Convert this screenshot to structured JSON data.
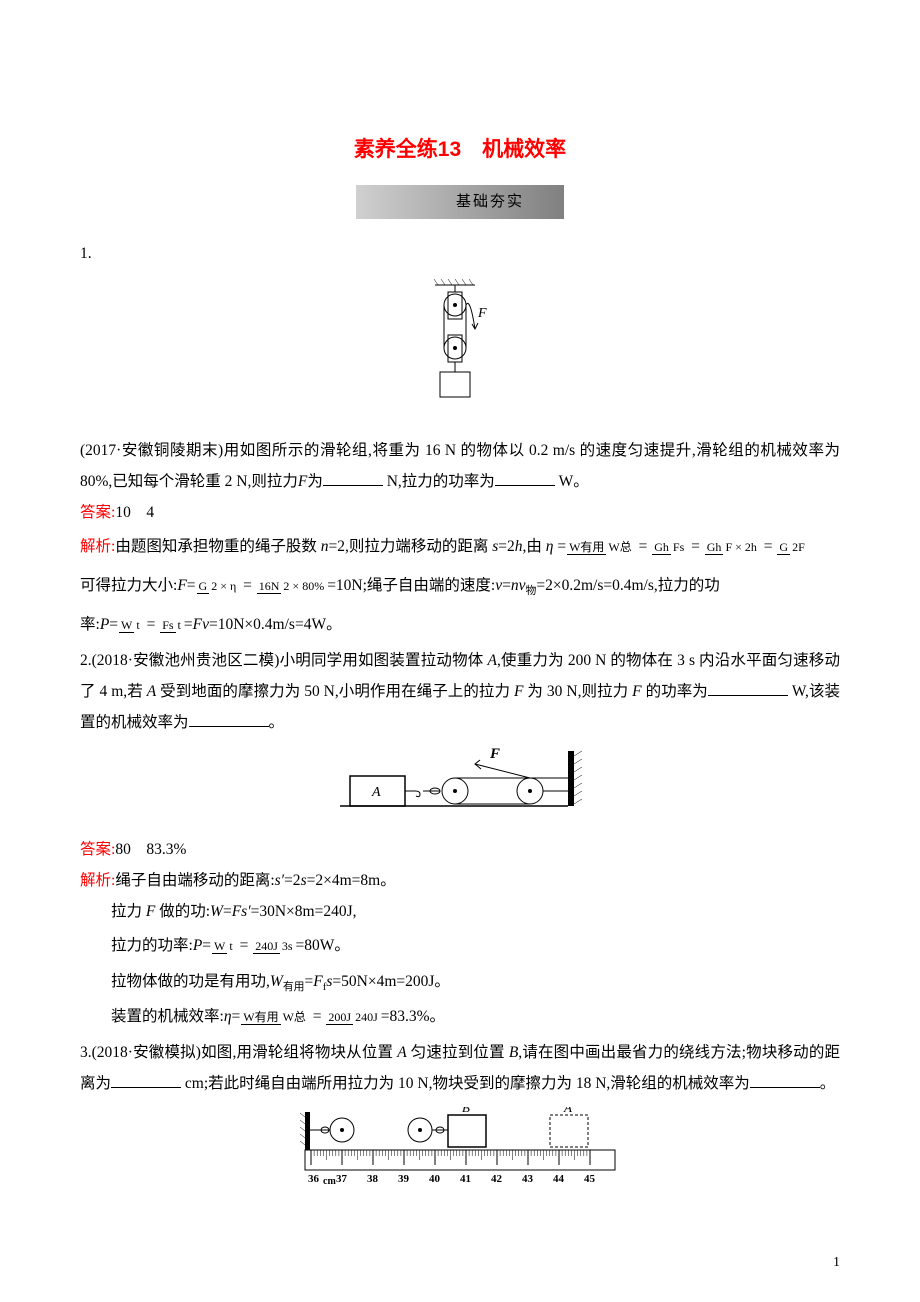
{
  "title": "素养全练13　机械效率",
  "section_bar": "基础夯实",
  "p1": {
    "num": "1.",
    "text1": "(2017·安徽铜陵期末)用如图所示的滑轮组,将重为 16 N 的物体以 0.2 m/s 的速度匀速提升,滑轮组的机械效率为 80%,已知每个滑轮重 2 N,则拉力",
    "text1_f": "F",
    "text1_after": "为",
    "text1_unit": " N,拉力的功率为",
    "text1_unit2": " W。",
    "answer_label": "答案:",
    "answer": "10　4",
    "analysis_label": "解析:",
    "analysis1_a": "由题图知承担物重的绳子股数 ",
    "analysis1_n": "n",
    "analysis1_b": "=2,则拉力端移动的距离 ",
    "analysis1_s": "s",
    "analysis1_c": "=2",
    "analysis1_h": "h",
    "analysis1_d": ",由 ",
    "eta": "η",
    "frac1_num": "W有用",
    "frac1_den": "W总",
    "eq1": " = ",
    "frac2_num": "Gh",
    "frac2_den": "Fs",
    "frac3_num": "Gh",
    "frac3_den": "F × 2h",
    "frac4_num": "G",
    "frac4_den": "2F",
    "analysis2_a": "可得拉力大小:",
    "analysis2_f": "F",
    "analysis2_eq": "=",
    "frac5_num": "G",
    "frac5_den": "2 × η",
    "frac6_num": "16N",
    "frac6_den": "2 × 80%",
    "analysis2_b": "=10N;绳子自由端的速度:",
    "analysis2_v": "v",
    "analysis2_c": "=",
    "analysis2_nv": "nv",
    "analysis2_sub": "物",
    "analysis2_d": "=2×0.2m/s=0.4m/s,拉力的功",
    "analysis3_a": "率:",
    "analysis3_p": "P",
    "frac7_num": "W",
    "frac7_den": "t",
    "frac8_num": "Fs",
    "frac8_den": "t",
    "analysis3_b": "=",
    "analysis3_fv": "Fv",
    "analysis3_c": "=10N×0.4m/s=4W。"
  },
  "p2": {
    "text1": "2.(2018·安徽池州贵池区二模)小明同学用如图装置拉动物体",
    "text1_a": "A",
    "text1_b": ",使重力为 200 N 的物体在 3 s 内沿水平面匀速移动了 4 m,若",
    "text1_a2": "A",
    "text1_c": "受到地面的摩擦力为 50 N,小明作用在绳子上的拉力",
    "text1_f": "F",
    "text1_d": "为 30 N,则拉力",
    "text1_f2": "F",
    "text1_e": "的功率为",
    "text1_unit": " W,该装置的机械效率为",
    "text1_end": "。",
    "answer_label": "答案:",
    "answer": "80　83.3%",
    "analysis_label": "解析:",
    "line1_a": "绳子自由端移动的距离:",
    "line1_s": "s′",
    "line1_b": "=2",
    "line1_s2": "s",
    "line1_c": "=2×4m=8m。",
    "line2_a": "拉力",
    "line2_f": "F",
    "line2_b": "做的功:",
    "line2_w": "W",
    "line2_c": "=",
    "line2_fs": "Fs′",
    "line2_d": "=30N×8m=240J,",
    "line3_a": "拉力的功率:",
    "line3_p": "P",
    "line3_eq": "=",
    "frac1_num": "W",
    "frac1_den": "t",
    "frac2_num": "240J",
    "frac2_den": "3s",
    "line3_b": "=80W。",
    "line4_a": "拉物体做的功是有用功,",
    "line4_w": "W",
    "line4_sub": "有用",
    "line4_b": "=",
    "line4_ff": "F",
    "line4_fsub": "f",
    "line4_s": "s",
    "line4_c": "=50N×4m=200J。",
    "line5_a": "装置的机械效率:",
    "line5_eta": "η",
    "line5_eq": "=",
    "frac3_num": "W有用",
    "frac3_den": "W总",
    "frac4_num": "200J",
    "frac4_den": "240J",
    "line5_b": "=83.3%。"
  },
  "p3": {
    "text1": "3.(2018·安徽模拟)如图,用滑轮组将物块从位置",
    "text1_a": "A",
    "text1_b": "匀速拉到位置",
    "text1_b2": "B",
    "text1_c": ",请在图中画出最省力的绕线方法;物块移动的距离为",
    "text1_unit": " cm;若此时绳自由端所用拉力为 10 N,物块受到的摩擦力为 18 N,滑轮组的机械效率为",
    "text1_end": "。",
    "ruler_label_A": "A",
    "ruler_label_B": "B",
    "ruler_start": "36",
    "ruler_cm": "cm",
    "ruler_ticks": [
      "37",
      "38",
      "39",
      "40",
      "41",
      "42",
      "43",
      "44",
      "45"
    ]
  },
  "page_num": "1",
  "colors": {
    "title_color": "#ff0000",
    "answer_color": "#ff0000",
    "text_color": "#000000",
    "background": "#ffffff"
  }
}
